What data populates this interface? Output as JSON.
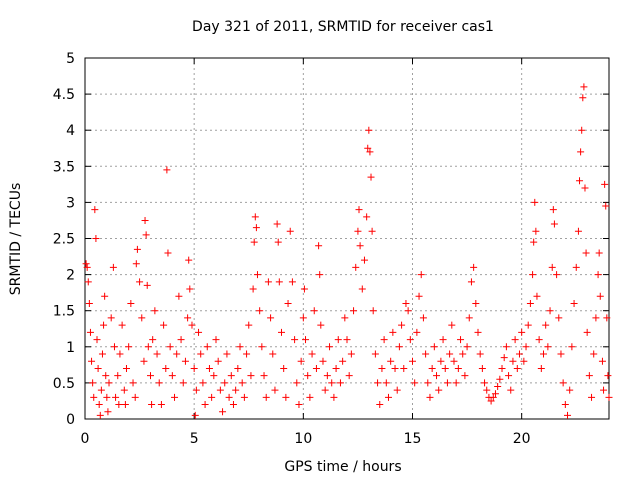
{
  "chart_data": {
    "type": "scatter",
    "title": "Day 321 of 2011, SRMTID for receiver cas1",
    "xlabel": "GPS time / hours",
    "ylabel": "SRMTID / TECUs",
    "xlim": [
      0,
      24
    ],
    "ylim": [
      0,
      5
    ],
    "xticks": [
      0,
      5,
      10,
      15,
      20
    ],
    "xtick_labels": [
      "0",
      "5",
      "10",
      "15",
      "20"
    ],
    "yticks": [
      0,
      0.5,
      1,
      1.5,
      2,
      2.5,
      3,
      3.5,
      4,
      4.5,
      5
    ],
    "ytick_labels": [
      "0",
      "0.5",
      "1",
      "1.5",
      "2",
      "2.5",
      "3",
      "3.5",
      "4",
      "4.5",
      "5"
    ],
    "grid": true,
    "marker": "+",
    "color": "#ff0000",
    "series": [
      {
        "name": "cas1",
        "points": [
          [
            0.05,
            2.15
          ],
          [
            0.1,
            2.1
          ],
          [
            0.15,
            1.9
          ],
          [
            0.2,
            1.6
          ],
          [
            0.25,
            1.2
          ],
          [
            0.3,
            0.8
          ],
          [
            0.35,
            0.5
          ],
          [
            0.4,
            0.3
          ],
          [
            0.45,
            2.9
          ],
          [
            0.5,
            2.5
          ],
          [
            0.55,
            1.1
          ],
          [
            0.6,
            0.7
          ],
          [
            0.65,
            0.2
          ],
          [
            0.7,
            0.05
          ],
          [
            0.75,
            0.4
          ],
          [
            0.8,
            0.9
          ],
          [
            0.85,
            1.3
          ],
          [
            0.9,
            1.7
          ],
          [
            0.95,
            0.6
          ],
          [
            1.0,
            0.3
          ],
          [
            1.05,
            0.1
          ],
          [
            1.1,
            0.5
          ],
          [
            1.2,
            1.4
          ],
          [
            1.3,
            2.1
          ],
          [
            1.35,
            1.0
          ],
          [
            1.4,
            0.3
          ],
          [
            1.5,
            0.6
          ],
          [
            1.55,
            0.2
          ],
          [
            1.6,
            0.9
          ],
          [
            1.7,
            1.3
          ],
          [
            1.8,
            0.4
          ],
          [
            1.85,
            0.2
          ],
          [
            1.9,
            0.7
          ],
          [
            2.0,
            1.0
          ],
          [
            2.1,
            1.6
          ],
          [
            2.2,
            0.5
          ],
          [
            2.3,
            0.3
          ],
          [
            2.35,
            2.15
          ],
          [
            2.4,
            2.35
          ],
          [
            2.5,
            1.9
          ],
          [
            2.6,
            1.4
          ],
          [
            2.7,
            0.8
          ],
          [
            2.75,
            2.75
          ],
          [
            2.8,
            2.55
          ],
          [
            2.85,
            1.85
          ],
          [
            2.9,
            1.0
          ],
          [
            3.0,
            0.6
          ],
          [
            3.05,
            0.2
          ],
          [
            3.1,
            1.1
          ],
          [
            3.2,
            1.5
          ],
          [
            3.3,
            0.9
          ],
          [
            3.4,
            0.5
          ],
          [
            3.5,
            0.2
          ],
          [
            3.6,
            1.3
          ],
          [
            3.7,
            0.7
          ],
          [
            3.75,
            3.45
          ],
          [
            3.8,
            2.3
          ],
          [
            3.9,
            1.0
          ],
          [
            4.0,
            0.6
          ],
          [
            4.1,
            0.3
          ],
          [
            4.2,
            0.9
          ],
          [
            4.3,
            1.7
          ],
          [
            4.4,
            1.1
          ],
          [
            4.5,
            0.5
          ],
          [
            4.6,
            0.8
          ],
          [
            4.7,
            1.4
          ],
          [
            4.75,
            2.2
          ],
          [
            4.8,
            1.8
          ],
          [
            4.9,
            1.3
          ],
          [
            5.0,
            0.7
          ],
          [
            5.05,
            0.05
          ],
          [
            5.1,
            0.4
          ],
          [
            5.2,
            1.2
          ],
          [
            5.3,
            0.9
          ],
          [
            5.4,
            0.5
          ],
          [
            5.5,
            0.2
          ],
          [
            5.6,
            1.0
          ],
          [
            5.7,
            0.7
          ],
          [
            5.8,
            0.3
          ],
          [
            5.9,
            0.6
          ],
          [
            6.0,
            1.1
          ],
          [
            6.1,
            0.8
          ],
          [
            6.2,
            0.4
          ],
          [
            6.3,
            0.1
          ],
          [
            6.4,
            0.5
          ],
          [
            6.5,
            0.9
          ],
          [
            6.6,
            0.3
          ],
          [
            6.7,
            0.6
          ],
          [
            6.8,
            0.2
          ],
          [
            6.9,
            0.4
          ],
          [
            7.0,
            0.7
          ],
          [
            7.1,
            1.0
          ],
          [
            7.2,
            0.5
          ],
          [
            7.3,
            0.3
          ],
          [
            7.4,
            0.9
          ],
          [
            7.5,
            1.3
          ],
          [
            7.6,
            0.6
          ],
          [
            7.7,
            1.8
          ],
          [
            7.75,
            2.45
          ],
          [
            7.8,
            2.8
          ],
          [
            7.85,
            2.65
          ],
          [
            7.9,
            2.0
          ],
          [
            8.0,
            1.5
          ],
          [
            8.1,
            1.0
          ],
          [
            8.2,
            0.6
          ],
          [
            8.3,
            0.3
          ],
          [
            8.4,
            1.9
          ],
          [
            8.5,
            1.4
          ],
          [
            8.6,
            0.9
          ],
          [
            8.7,
            0.4
          ],
          [
            8.8,
            2.7
          ],
          [
            8.85,
            2.45
          ],
          [
            8.9,
            1.9
          ],
          [
            9.0,
            1.2
          ],
          [
            9.1,
            0.7
          ],
          [
            9.2,
            0.3
          ],
          [
            9.3,
            1.6
          ],
          [
            9.4,
            2.6
          ],
          [
            9.5,
            1.9
          ],
          [
            9.6,
            1.1
          ],
          [
            9.7,
            0.5
          ],
          [
            9.8,
            0.2
          ],
          [
            9.9,
            0.8
          ],
          [
            10.0,
            1.4
          ],
          [
            10.05,
            1.8
          ],
          [
            10.1,
            1.1
          ],
          [
            10.2,
            0.6
          ],
          [
            10.3,
            0.3
          ],
          [
            10.4,
            0.9
          ],
          [
            10.5,
            1.5
          ],
          [
            10.6,
            0.7
          ],
          [
            10.7,
            2.4
          ],
          [
            10.75,
            2.0
          ],
          [
            10.8,
            1.3
          ],
          [
            10.9,
            0.8
          ],
          [
            11.0,
            0.4
          ],
          [
            11.1,
            0.6
          ],
          [
            11.2,
            1.0
          ],
          [
            11.3,
            0.5
          ],
          [
            11.4,
            0.3
          ],
          [
            11.5,
            0.7
          ],
          [
            11.6,
            1.1
          ],
          [
            11.7,
            0.5
          ],
          [
            11.8,
            0.8
          ],
          [
            11.9,
            1.4
          ],
          [
            12.0,
            1.1
          ],
          [
            12.1,
            0.6
          ],
          [
            12.2,
            0.9
          ],
          [
            12.3,
            1.5
          ],
          [
            12.4,
            2.1
          ],
          [
            12.5,
            2.6
          ],
          [
            12.55,
            2.9
          ],
          [
            12.6,
            2.4
          ],
          [
            12.7,
            1.8
          ],
          [
            12.8,
            2.2
          ],
          [
            12.9,
            2.8
          ],
          [
            12.95,
            3.75
          ],
          [
            13.0,
            4.0
          ],
          [
            13.05,
            3.7
          ],
          [
            13.1,
            3.35
          ],
          [
            13.15,
            2.6
          ],
          [
            13.2,
            1.5
          ],
          [
            13.3,
            0.9
          ],
          [
            13.4,
            0.5
          ],
          [
            13.5,
            0.2
          ],
          [
            13.6,
            0.7
          ],
          [
            13.7,
            1.1
          ],
          [
            13.8,
            0.5
          ],
          [
            13.9,
            0.3
          ],
          [
            14.0,
            0.8
          ],
          [
            14.1,
            1.2
          ],
          [
            14.2,
            0.7
          ],
          [
            14.3,
            0.4
          ],
          [
            14.4,
            1.0
          ],
          [
            14.5,
            1.3
          ],
          [
            14.6,
            0.7
          ],
          [
            14.7,
            1.6
          ],
          [
            14.8,
            1.5
          ],
          [
            14.9,
            1.1
          ],
          [
            15.0,
            0.8
          ],
          [
            15.1,
            0.5
          ],
          [
            15.2,
            1.2
          ],
          [
            15.3,
            1.7
          ],
          [
            15.4,
            2.0
          ],
          [
            15.5,
            1.4
          ],
          [
            15.6,
            0.9
          ],
          [
            15.7,
            0.5
          ],
          [
            15.8,
            0.3
          ],
          [
            15.9,
            0.7
          ],
          [
            16.0,
            1.0
          ],
          [
            16.1,
            0.6
          ],
          [
            16.2,
            0.4
          ],
          [
            16.3,
            0.8
          ],
          [
            16.4,
            1.1
          ],
          [
            16.5,
            0.7
          ],
          [
            16.6,
            0.5
          ],
          [
            16.7,
            0.9
          ],
          [
            16.8,
            1.3
          ],
          [
            16.9,
            0.8
          ],
          [
            17.0,
            0.5
          ],
          [
            17.1,
            0.7
          ],
          [
            17.2,
            1.1
          ],
          [
            17.3,
            0.9
          ],
          [
            17.4,
            0.6
          ],
          [
            17.5,
            1.0
          ],
          [
            17.6,
            1.4
          ],
          [
            17.7,
            1.9
          ],
          [
            17.8,
            2.1
          ],
          [
            17.9,
            1.6
          ],
          [
            18.0,
            1.2
          ],
          [
            18.1,
            0.9
          ],
          [
            18.2,
            0.7
          ],
          [
            18.3,
            0.5
          ],
          [
            18.4,
            0.4
          ],
          [
            18.5,
            0.3
          ],
          [
            18.6,
            0.25
          ],
          [
            18.7,
            0.3
          ],
          [
            18.8,
            0.35
          ],
          [
            18.9,
            0.45
          ],
          [
            19.0,
            0.55
          ],
          [
            19.1,
            0.7
          ],
          [
            19.2,
            0.85
          ],
          [
            19.3,
            1.0
          ],
          [
            19.4,
            0.6
          ],
          [
            19.5,
            0.4
          ],
          [
            19.6,
            0.8
          ],
          [
            19.7,
            1.1
          ],
          [
            19.8,
            0.7
          ],
          [
            19.9,
            0.9
          ],
          [
            20.0,
            1.2
          ],
          [
            20.1,
            0.8
          ],
          [
            20.2,
            1.0
          ],
          [
            20.3,
            1.3
          ],
          [
            20.4,
            1.6
          ],
          [
            20.5,
            2.0
          ],
          [
            20.55,
            2.45
          ],
          [
            20.6,
            3.0
          ],
          [
            20.65,
            2.6
          ],
          [
            20.7,
            1.7
          ],
          [
            20.8,
            1.1
          ],
          [
            20.9,
            0.7
          ],
          [
            21.0,
            0.9
          ],
          [
            21.1,
            1.3
          ],
          [
            21.2,
            1.0
          ],
          [
            21.3,
            1.5
          ],
          [
            21.4,
            2.1
          ],
          [
            21.45,
            2.9
          ],
          [
            21.5,
            2.7
          ],
          [
            21.6,
            2.0
          ],
          [
            21.7,
            1.4
          ],
          [
            21.8,
            0.9
          ],
          [
            21.9,
            0.5
          ],
          [
            22.0,
            0.2
          ],
          [
            22.1,
            0.05
          ],
          [
            22.2,
            0.4
          ],
          [
            22.3,
            1.0
          ],
          [
            22.4,
            1.6
          ],
          [
            22.5,
            2.1
          ],
          [
            22.6,
            2.6
          ],
          [
            22.65,
            3.3
          ],
          [
            22.7,
            3.7
          ],
          [
            22.75,
            4.0
          ],
          [
            22.8,
            4.45
          ],
          [
            22.85,
            4.6
          ],
          [
            22.9,
            3.2
          ],
          [
            22.95,
            2.3
          ],
          [
            23.0,
            1.2
          ],
          [
            23.1,
            0.6
          ],
          [
            23.2,
            0.3
          ],
          [
            23.3,
            0.9
          ],
          [
            23.4,
            1.4
          ],
          [
            23.5,
            2.0
          ],
          [
            23.55,
            2.3
          ],
          [
            23.6,
            1.7
          ],
          [
            23.7,
            0.8
          ],
          [
            23.75,
            0.4
          ],
          [
            23.8,
            3.25
          ],
          [
            23.85,
            2.95
          ],
          [
            23.9,
            1.4
          ],
          [
            23.95,
            0.6
          ],
          [
            24.0,
            0.3
          ]
        ]
      }
    ]
  }
}
